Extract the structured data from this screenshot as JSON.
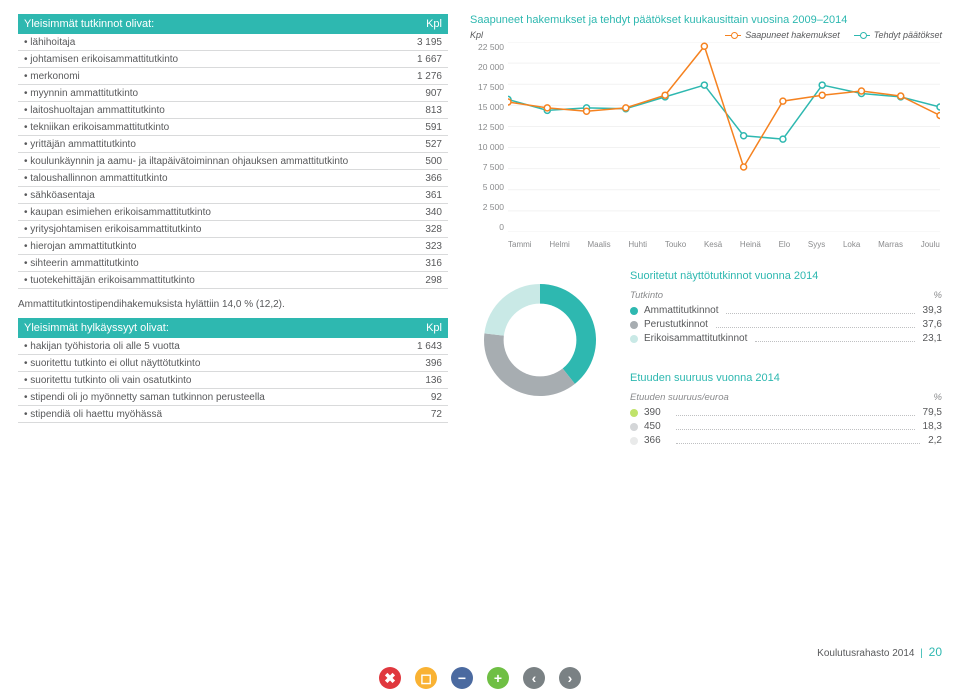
{
  "tutkinnot": {
    "head_label": "Yleisimmät tutkinnot olivat:",
    "head_unit": "Kpl",
    "rows": [
      {
        "label": "lähihoitaja",
        "value": "3 195"
      },
      {
        "label": "johtamisen erikoisammattitutkinto",
        "value": "1 667"
      },
      {
        "label": "merkonomi",
        "value": "1 276"
      },
      {
        "label": "myynnin ammattitutkinto",
        "value": "907"
      },
      {
        "label": "laitoshuoltajan ammattitutkinto",
        "value": "813"
      },
      {
        "label": "tekniikan erikoisammattitutkinto",
        "value": "591"
      },
      {
        "label": "yrittäjän ammattitutkinto",
        "value": "527"
      },
      {
        "label": "koulunkäynnin ja aamu- ja iltapäivätoiminnan ohjauksen ammattitutkinto",
        "value": "500"
      },
      {
        "label": "taloushallinnon ammattitutkinto",
        "value": "366"
      },
      {
        "label": "sähköasentaja",
        "value": "361"
      },
      {
        "label": "kaupan esimiehen erikoisammattitutkinto",
        "value": "340"
      },
      {
        "label": "yritysjohtamisen erikoisammattitutkinto",
        "value": "328"
      },
      {
        "label": "hierojan ammattitutkinto",
        "value": "323"
      },
      {
        "label": "sihteerin ammattitutkinto",
        "value": "316"
      },
      {
        "label": "tuotekehittäjän erikoisammattitutkinto",
        "value": "298"
      }
    ]
  },
  "note": "Ammattitutkintostipendihakemuksista hylättiin 14,0 % (12,2).",
  "hylkays": {
    "head_label": "Yleisimmät hylkäyssyyt olivat:",
    "head_unit": "Kpl",
    "rows": [
      {
        "label": "hakijan työhistoria oli alle 5 vuotta",
        "value": "1 643"
      },
      {
        "label": "suoritettu tutkinto ei ollut näyttötutkinto",
        "value": "396"
      },
      {
        "label": "suoritettu tutkinto oli vain osatutkinto",
        "value": "136"
      },
      {
        "label": "stipendi oli jo myönnetty saman tutkinnon perusteella",
        "value": "92"
      },
      {
        "label": "stipendiä oli haettu myöhässä",
        "value": "72"
      }
    ]
  },
  "chart": {
    "title": "Saapuneet hakemukset ja tehdyt päätökset kuukausittain vuosina 2009–2014",
    "y_unit": "Kpl",
    "legend_a": "Saapuneet hakemukset",
    "legend_b": "Tehdyt päätökset",
    "color_a": "#f58220",
    "color_b": "#2eb8b0",
    "months": [
      "Tammi",
      "Helmi",
      "Maalis",
      "Huhti",
      "Touko",
      "Kesä",
      "Heinä",
      "Elo",
      "Syys",
      "Loka",
      "Marras",
      "Joulu"
    ],
    "ymax": 22500,
    "ystep": 2500,
    "series_a": [
      15400,
      14700,
      14300,
      14700,
      16200,
      22000,
      7700,
      15500,
      16200,
      16700,
      16100,
      13800
    ],
    "series_b": [
      15700,
      14400,
      14700,
      14600,
      16000,
      17400,
      11400,
      11000,
      17400,
      16400,
      16000,
      14800
    ]
  },
  "donut1": {
    "title": "Suoritetut näyttötutkinnot vuonna 2014",
    "head_a": "Tutkinto",
    "head_b": "%",
    "rows": [
      {
        "label": "Ammattitutkinnot",
        "value": "39,3",
        "color": "#2eb8b0"
      },
      {
        "label": "Perustutkinnot",
        "value": "37,6",
        "color": "#a7adb1"
      },
      {
        "label": "Erikoisammattitutkinnot",
        "value": "23,1",
        "color": "#c9e9e6"
      }
    ],
    "slices": [
      39.3,
      37.6,
      23.1
    ],
    "slice_colors": [
      "#2eb8b0",
      "#a7adb1",
      "#c9e9e6"
    ]
  },
  "donut2": {
    "title": "Etuuden suuruus vuonna 2014",
    "head_a": "Etuuden suuruus/euroa",
    "head_b": "%",
    "rows": [
      {
        "label": "390",
        "value": "79,5",
        "color": "#c0e36a"
      },
      {
        "label": "450",
        "value": "18,3",
        "color": "#d4d6d8"
      },
      {
        "label": "366",
        "value": "2,2",
        "color": "#e9eaea"
      }
    ],
    "slices": [
      79.5,
      18.3,
      2.2
    ],
    "slice_colors": [
      "#c0e36a",
      "#d4d6d8",
      "#e9eaea"
    ]
  },
  "footer": {
    "text": "Koulutusrahasto 2014",
    "page": "20"
  },
  "icons": [
    {
      "name": "close-icon",
      "glyph": "✖",
      "color": "#e0383e"
    },
    {
      "name": "bookmark-icon",
      "glyph": "◻",
      "color": "#f9b233"
    },
    {
      "name": "minus-icon",
      "glyph": "−",
      "color": "#4b6aa0"
    },
    {
      "name": "plus-icon",
      "glyph": "+",
      "color": "#6fbf44"
    },
    {
      "name": "left-icon",
      "glyph": "‹",
      "color": "#7a8184"
    },
    {
      "name": "right-icon",
      "glyph": "›",
      "color": "#7a8184"
    }
  ]
}
